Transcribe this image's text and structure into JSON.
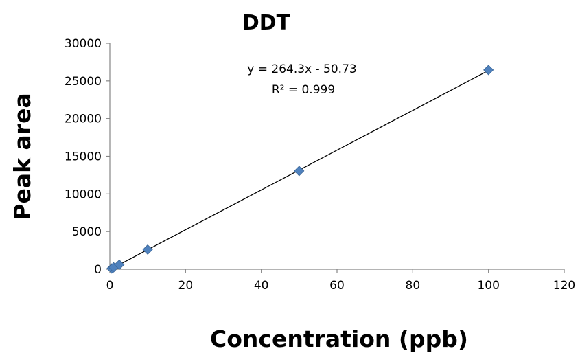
{
  "chart_data": {
    "type": "scatter",
    "title": "DDT",
    "xlabel": "Concentration (ppb)",
    "ylabel": "Peak area",
    "xlim": [
      0,
      120
    ],
    "ylim": [
      0,
      30000
    ],
    "x_ticks": [
      0,
      20,
      40,
      60,
      80,
      100,
      120
    ],
    "y_ticks": [
      0,
      5000,
      10000,
      15000,
      20000,
      25000,
      30000
    ],
    "x_tick_labels": [
      "0",
      "20",
      "40",
      "60",
      "80",
      "100",
      "120"
    ],
    "y_tick_labels": [
      "0",
      "5000",
      "10000",
      "15000",
      "20000",
      "25000",
      "30000"
    ],
    "grid": false,
    "legend": "none",
    "series": [
      {
        "marker": "diamond",
        "color": "#4f81bd",
        "x": [
          0.5,
          1,
          2.5,
          10,
          50,
          100
        ],
        "y": [
          100,
          250,
          600,
          2600,
          13050,
          26450
        ]
      }
    ],
    "trendline": {
      "type": "linear",
      "slope": 264.3,
      "intercept": -50.73,
      "x_range": [
        0.5,
        100
      ],
      "color": "#000000"
    },
    "annotations": {
      "equation": "y = 264.3x - 50.73",
      "r_squared": "R² = 0.999"
    }
  }
}
